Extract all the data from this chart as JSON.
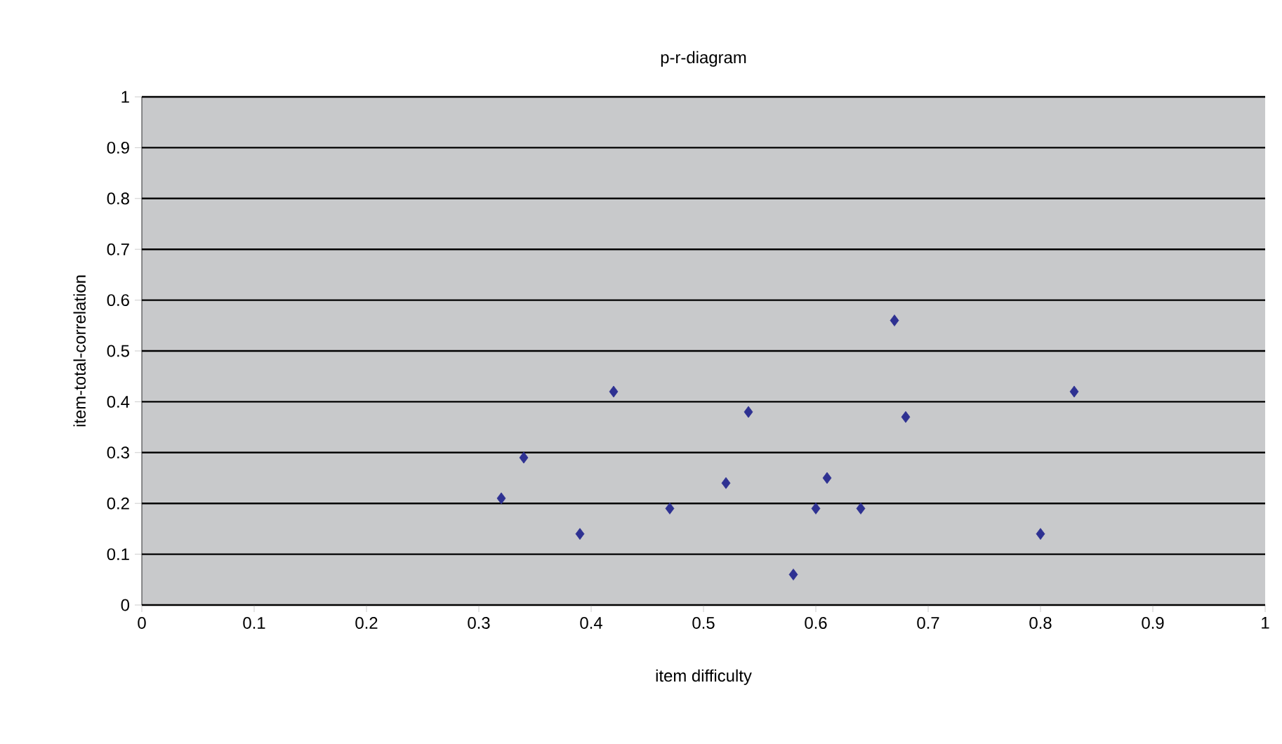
{
  "chart_data": {
    "type": "scatter",
    "title": "p-r-diagram",
    "xlabel": "item difficulty",
    "ylabel": "item-total-correlation",
    "x": [
      0.32,
      0.34,
      0.39,
      0.42,
      0.47,
      0.52,
      0.54,
      0.58,
      0.6,
      0.61,
      0.64,
      0.67,
      0.68,
      0.8,
      0.83
    ],
    "values": [
      0.21,
      0.29,
      0.14,
      0.42,
      0.19,
      0.24,
      0.38,
      0.06,
      0.19,
      0.25,
      0.19,
      0.56,
      0.37,
      0.14,
      0.42
    ],
    "color": "#2e3192",
    "marker": "diamond",
    "xlim": [
      0,
      1
    ],
    "ylim": [
      0,
      1
    ],
    "xticks": [
      0,
      0.1,
      0.2,
      0.3,
      0.4,
      0.5,
      0.6,
      0.7,
      0.8,
      0.9,
      1
    ],
    "yticks": [
      0,
      0.1,
      0.2,
      0.3,
      0.4,
      0.5,
      0.6,
      0.7,
      0.8,
      0.9,
      1
    ],
    "grid": "y"
  }
}
